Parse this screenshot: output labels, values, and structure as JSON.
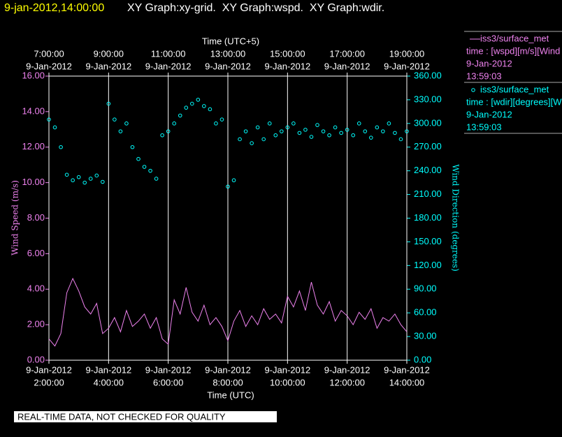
{
  "chart_data": {
    "type": "xy",
    "title_time": "9-jan-2012,14:00:00",
    "title": "XY Graph:xy-grid.  XY Graph:wspd.  XY Graph:wdir.",
    "xlabel": "Time (UTC)",
    "x2label": "Time (UTC+5)",
    "ylabel": "Wind Speed (m/s)",
    "y2label": "Wind Direction (degrees)",
    "footer": "REAL-TIME DATA, NOT CHECKED FOR QUALITY",
    "grid": "x",
    "xlim": [
      2,
      14
    ],
    "xticks": [
      {
        "value": 2,
        "label": [
          "9-Jan-2012",
          "2:00:00"
        ]
      },
      {
        "value": 4,
        "label": [
          "9-Jan-2012",
          "4:00:00"
        ]
      },
      {
        "value": 6,
        "label": [
          "9-Jan-2012",
          "6:00:00"
        ]
      },
      {
        "value": 8,
        "label": [
          "9-Jan-2012",
          "8:00:00"
        ]
      },
      {
        "value": 10,
        "label": [
          "9-Jan-2012",
          "10:00:00"
        ]
      },
      {
        "value": 12,
        "label": [
          "9-Jan-2012",
          "12:00:00"
        ]
      },
      {
        "value": 14,
        "label": [
          "9-Jan-2012",
          "14:00:00"
        ]
      }
    ],
    "x2lim": [
      7,
      19
    ],
    "x2ticks": [
      {
        "value": 7,
        "label": [
          "7:00:00",
          "9-Jan-2012"
        ]
      },
      {
        "value": 9,
        "label": [
          "9:00:00",
          "9-Jan-2012"
        ]
      },
      {
        "value": 11,
        "label": [
          "11:00:00",
          "9-Jan-2012"
        ]
      },
      {
        "value": 13,
        "label": [
          "13:00:00",
          "9-Jan-2012"
        ]
      },
      {
        "value": 15,
        "label": [
          "15:00:00",
          "9-Jan-2012"
        ]
      },
      {
        "value": 17,
        "label": [
          "17:00:00",
          "9-Jan-2012"
        ]
      },
      {
        "value": 19,
        "label": [
          "19:00:00",
          "9-Jan-2012"
        ]
      }
    ],
    "ylim": [
      0,
      16
    ],
    "yticks": [
      {
        "value": 0,
        "label": "0.00"
      },
      {
        "value": 2,
        "label": "2.00"
      },
      {
        "value": 4,
        "label": "4.00"
      },
      {
        "value": 6,
        "label": "6.00"
      },
      {
        "value": 8,
        "label": "8.00"
      },
      {
        "value": 10,
        "label": "10.00"
      },
      {
        "value": 12,
        "label": "12.00"
      },
      {
        "value": 14,
        "label": "14.00"
      },
      {
        "value": 16,
        "label": "16.00"
      }
    ],
    "y2lim": [
      0,
      360
    ],
    "y2ticks": [
      {
        "value": 0,
        "label": "0.00"
      },
      {
        "value": 30,
        "label": "30.00"
      },
      {
        "value": 60,
        "label": "60.00"
      },
      {
        "value": 90,
        "label": "90.00"
      },
      {
        "value": 120,
        "label": "120.00"
      },
      {
        "value": 150,
        "label": "150.00"
      },
      {
        "value": 180,
        "label": "180.00"
      },
      {
        "value": 210,
        "label": "210.00"
      },
      {
        "value": 240,
        "label": "240.00"
      },
      {
        "value": 270,
        "label": "270.00"
      },
      {
        "value": 300,
        "label": "300.00"
      },
      {
        "value": 330,
        "label": "330.00"
      },
      {
        "value": 360,
        "label": "360.00"
      }
    ],
    "x": [
      2.0,
      2.2,
      2.4,
      2.6,
      2.8,
      3.0,
      3.2,
      3.4,
      3.6,
      3.8,
      4.0,
      4.2,
      4.4,
      4.6,
      4.8,
      5.0,
      5.2,
      5.4,
      5.6,
      5.8,
      6.0,
      6.2,
      6.4,
      6.6,
      6.8,
      7.0,
      7.2,
      7.4,
      7.6,
      7.8,
      8.0,
      8.2,
      8.4,
      8.6,
      8.8,
      9.0,
      9.2,
      9.4,
      9.6,
      9.8,
      10.0,
      10.2,
      10.4,
      10.6,
      10.8,
      11.0,
      11.2,
      11.4,
      11.6,
      11.8,
      12.0,
      12.2,
      12.4,
      12.6,
      12.8,
      13.0,
      13.2,
      13.4,
      13.6,
      13.8,
      14.0
    ],
    "series": [
      {
        "name": "iss3/surface_met",
        "type": "line",
        "color": "#ee82ee",
        "legend_detail": [
          "time : [wspd][m/s][Wind",
          "9-Jan-2012",
          "13:59:03"
        ],
        "values": [
          1.2,
          0.8,
          1.5,
          3.8,
          4.6,
          3.9,
          3.0,
          2.6,
          3.2,
          1.5,
          1.8,
          2.4,
          1.6,
          2.8,
          1.9,
          2.2,
          2.6,
          1.8,
          2.4,
          1.2,
          0.9,
          3.4,
          2.6,
          4.1,
          2.7,
          2.2,
          3.1,
          2.0,
          2.4,
          1.9,
          1.1,
          2.2,
          2.8,
          1.9,
          2.5,
          2.0,
          2.9,
          2.3,
          2.6,
          2.1,
          3.6,
          3.0,
          3.9,
          2.8,
          4.4,
          3.1,
          2.6,
          3.3,
          2.2,
          2.8,
          2.5,
          2.0,
          2.7,
          2.3,
          2.9,
          1.8,
          2.4,
          2.2,
          2.6,
          2.0,
          1.6
        ]
      },
      {
        "name": "iss3/surface_met",
        "type": "scatter",
        "axis": "y2",
        "color": "#00ffff",
        "legend_detail": [
          "time : [wdir][degrees][W",
          "9-Jan-2012",
          "13:59:03"
        ],
        "values": [
          305,
          295,
          270,
          235,
          228,
          232,
          225,
          230,
          234,
          226,
          325,
          305,
          290,
          300,
          270,
          255,
          245,
          240,
          230,
          285,
          290,
          300,
          310,
          320,
          325,
          330,
          322,
          318,
          300,
          305,
          220,
          228,
          280,
          290,
          275,
          295,
          280,
          300,
          285,
          290,
          295,
          300,
          288,
          292,
          283,
          298,
          290,
          285,
          295,
          288,
          292,
          285,
          300,
          290,
          282,
          295,
          290,
          300,
          288,
          280,
          290
        ]
      }
    ]
  }
}
